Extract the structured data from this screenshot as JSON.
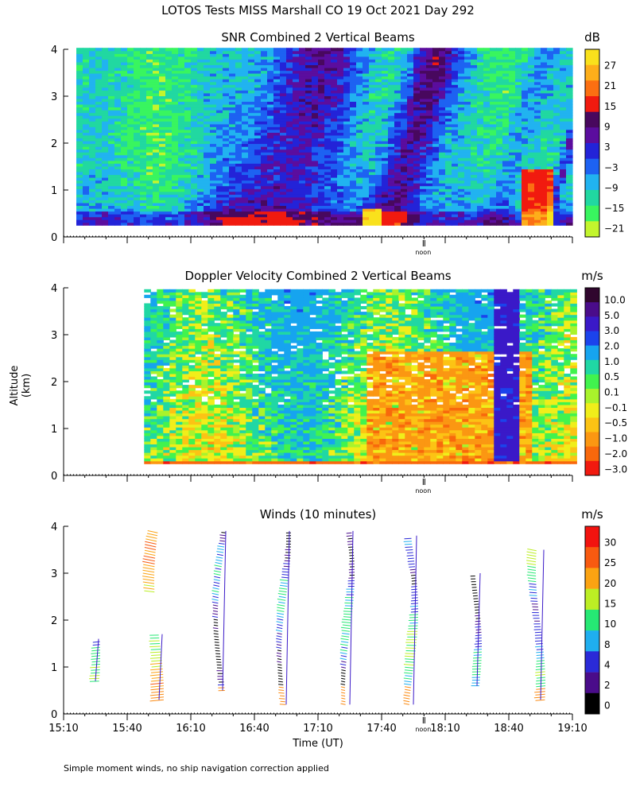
{
  "page": {
    "title": "LOTOS Tests MISS Marshall CO  19 Oct 2021 Day 292",
    "ylabel": "Altitude (km)",
    "xlabel": "Time (UT)",
    "footnote": "Simple moment winds, no ship navigation correction applied",
    "noon_label": "noon"
  },
  "chart_data": [
    {
      "type": "heatmap",
      "title": "SNR Combined 2 Vertical Beams",
      "colorbar_unit": "dB",
      "colorbar_ticks": [
        "27",
        "21",
        "15",
        "9",
        "3",
        "−3",
        "−9",
        "−15",
        "−21"
      ],
      "colorbar_colors": [
        "#f9e11c",
        "#fdae1a",
        "#fb6f12",
        "#f11a0f",
        "#48085e",
        "#5b0d9e",
        "#2323d8",
        "#1d62f2",
        "#21b3f0",
        "#21d8a1",
        "#39f55f",
        "#c3f52d"
      ],
      "ylim": [
        0,
        4
      ],
      "yticks": [
        0,
        1,
        2,
        3,
        4
      ],
      "xlim_min": [
        0,
        240
      ]
    },
    {
      "type": "heatmap",
      "title": "Doppler Velocity Combined 2 Vertical Beams",
      "colorbar_unit": "m/s",
      "colorbar_ticks": [
        "10.0",
        "5.0",
        "3.0",
        "2.0",
        "1.0",
        "0.5",
        "0.1",
        "−0.1",
        "−0.5",
        "−1.0",
        "−2.0",
        "−3.0"
      ],
      "colorbar_colors": [
        "#30062e",
        "#4a0c8a",
        "#3a19c8",
        "#1b43ec",
        "#16a4ef",
        "#20d7a4",
        "#41f34e",
        "#a9f32c",
        "#f0ee1a",
        "#fcc314",
        "#fb9712",
        "#f8680c",
        "#f11a0f"
      ],
      "ylim": [
        0,
        4
      ],
      "yticks": [
        0,
        1,
        2,
        3,
        4
      ],
      "xlim_min": [
        0,
        240
      ]
    },
    {
      "type": "scatter",
      "title": "Winds (10 minutes)",
      "colorbar_unit": "m/s",
      "colorbar_ticks": [
        "30",
        "25",
        "20",
        "15",
        "10",
        "8",
        "4",
        "2",
        "0"
      ],
      "colorbar_colors": [
        "#f2130f",
        "#f85a10",
        "#fba312",
        "#bcee24",
        "#26e874",
        "#1faeef",
        "#2a2ad8",
        "#4a0c8a",
        "#000000"
      ],
      "ylim": [
        0,
        4
      ],
      "yticks": [
        0,
        1,
        2,
        3,
        4
      ],
      "xticks": [
        "15:10",
        "15:40",
        "16:10",
        "16:40",
        "17:10",
        "17:40",
        "18:10",
        "18:40",
        "19:10"
      ],
      "xlim_min": [
        0,
        240
      ],
      "profile_times_min": [
        15,
        45,
        75,
        105,
        135,
        165,
        195,
        225
      ]
    }
  ]
}
